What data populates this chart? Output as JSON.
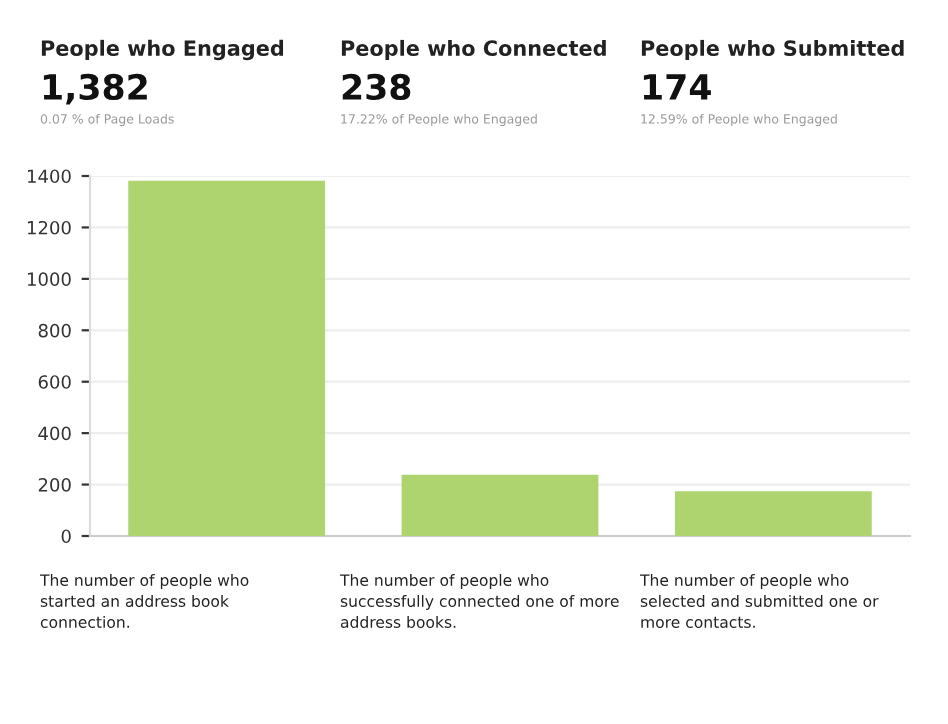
{
  "chart_data": {
    "type": "bar",
    "categories": [
      "People who Engaged",
      "People who Connected",
      "People who Submitted"
    ],
    "values": [
      1382,
      238,
      174
    ],
    "value_labels": [
      "1,382",
      "238",
      "174"
    ],
    "color": "#add46e",
    "ylim": [
      0,
      1400
    ],
    "yticks": [
      0,
      200,
      400,
      600,
      800,
      1000,
      1200,
      1400
    ],
    "grid": "y",
    "annotations": [
      "0.07 % of Page Loads",
      "17.22% of People who Engaged",
      "12.59% of People who Engaged",
      "The number of people who\nstarted an address book\nconnection.",
      "The number of people who\nsuccessfully connected one of more\naddress books.",
      "The number of people who\nselected and submitted one or\nmore contacts."
    ]
  }
}
